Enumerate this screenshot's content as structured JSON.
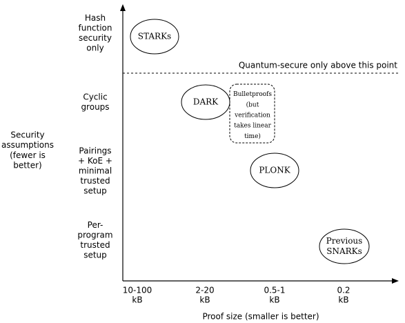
{
  "y_axis": {
    "title": [
      "Security",
      "assumptions",
      "(fewer is",
      "better)"
    ],
    "levels": [
      [
        "Hash",
        "function",
        "security",
        "only"
      ],
      [
        "Cyclic",
        "groups"
      ],
      [
        "Pairings",
        "+ KoE +",
        "minimal",
        "trusted",
        "setup"
      ],
      [
        "Per-",
        "program",
        "trusted",
        "setup"
      ]
    ]
  },
  "x_axis": {
    "title": "Proof size (smaller is better)",
    "levels": [
      [
        "10-100",
        "kB"
      ],
      [
        "2-20",
        "kB"
      ],
      [
        "0.5-1",
        "kB"
      ],
      [
        "0.2",
        "kB"
      ]
    ]
  },
  "threshold": "Quantum-secure only above this point",
  "nodes": [
    {
      "label": [
        "STARKs"
      ]
    },
    {
      "label": [
        "DARK"
      ]
    },
    {
      "label": [
        "Bulletproofs",
        "(but",
        "verification",
        "takes linear",
        "time)"
      ]
    },
    {
      "label": [
        "PLONK"
      ]
    },
    {
      "label": [
        "Previous",
        "SNARKs"
      ]
    }
  ]
}
